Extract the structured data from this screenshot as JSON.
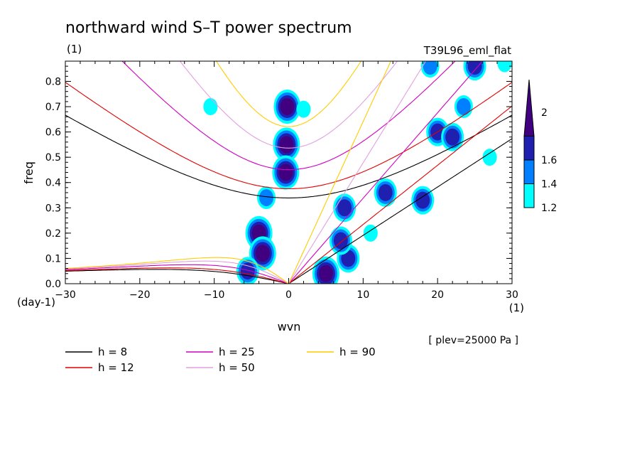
{
  "header": {
    "title": "northward wind S–T power spectrum",
    "subtitle_left": "(1)",
    "subtitle_right": "T39L96_eml_flat"
  },
  "chart_data": {
    "type": "heatmap",
    "title": "northward wind S–T power spectrum",
    "xlabel": "wvn",
    "ylabel": "freq",
    "x_unit": "(1)",
    "y_unit": "(day-1)",
    "xlim": [
      -30,
      30
    ],
    "ylim": [
      0,
      0.88
    ],
    "x_ticks": [
      -30,
      -20,
      -10,
      0,
      10,
      20,
      30
    ],
    "x_tick_labels": [
      "−30",
      "−20",
      "−10",
      "0",
      "10",
      "20",
      "30"
    ],
    "y_ticks": [
      0,
      0.1,
      0.2,
      0.3,
      0.4,
      0.5,
      0.6,
      0.7,
      0.8
    ],
    "y_tick_labels": [
      "0.0",
      "0.1",
      "0.2",
      "0.3",
      "0.4",
      "0.5",
      "0.6",
      "0.7",
      "0.8"
    ],
    "note": "[ plev=25000 Pa ]",
    "colorbar": {
      "levels": [
        1.2,
        1.4,
        1.6,
        2
      ],
      "labels": [
        "1.2",
        "1.4",
        "1.6",
        "2"
      ],
      "colors": [
        "#00ffff",
        "#0080ff",
        "#2020b0",
        "#400080"
      ]
    },
    "dispersion_curves": [
      {
        "label": "h =  8",
        "h": 8,
        "color": "#000000"
      },
      {
        "label": "h = 12",
        "h": 12,
        "color": "#e00000"
      },
      {
        "label": "h = 25",
        "h": 25,
        "color": "#d000c0"
      },
      {
        "label": "h = 50",
        "h": 50,
        "color": "#e0a0e0"
      },
      {
        "label": "h = 90",
        "h": 90,
        "color": "#ffcc00"
      }
    ],
    "power_blobs": [
      {
        "x": -0.2,
        "y": 0.7,
        "level": 4
      },
      {
        "x": -0.3,
        "y": 0.55,
        "level": 4
      },
      {
        "x": -0.4,
        "y": 0.44,
        "level": 4
      },
      {
        "x": -4.0,
        "y": 0.2,
        "level": 4
      },
      {
        "x": -3.5,
        "y": 0.12,
        "level": 4
      },
      {
        "x": -5.5,
        "y": 0.05,
        "level": 3
      },
      {
        "x": 5.0,
        "y": 0.04,
        "level": 4
      },
      {
        "x": 7.5,
        "y": 0.3,
        "level": 3
      },
      {
        "x": 8.0,
        "y": 0.1,
        "level": 3
      },
      {
        "x": 7.0,
        "y": 0.17,
        "level": 3
      },
      {
        "x": 13.0,
        "y": 0.36,
        "level": 3
      },
      {
        "x": 18.0,
        "y": 0.33,
        "level": 3
      },
      {
        "x": 20.0,
        "y": 0.6,
        "level": 3
      },
      {
        "x": 22.0,
        "y": 0.58,
        "level": 3
      },
      {
        "x": 23.5,
        "y": 0.7,
        "level": 2
      },
      {
        "x": 25.0,
        "y": 0.86,
        "level": 3
      },
      {
        "x": 19.0,
        "y": 0.86,
        "level": 2
      },
      {
        "x": -10.5,
        "y": 0.7,
        "level": 1
      },
      {
        "x": -3.0,
        "y": 0.34,
        "level": 2
      },
      {
        "x": 2.0,
        "y": 0.69,
        "level": 1
      },
      {
        "x": 11.0,
        "y": 0.2,
        "level": 1
      },
      {
        "x": 27.0,
        "y": 0.5,
        "level": 1
      },
      {
        "x": 29.0,
        "y": 0.87,
        "level": 1
      }
    ]
  },
  "legend": {
    "items": [
      {
        "label": "h =  8",
        "color": "#000000"
      },
      {
        "label": "h = 12",
        "color": "#e00000"
      },
      {
        "label": "h = 25",
        "color": "#d000c0"
      },
      {
        "label": "h = 50",
        "color": "#e0a0e0"
      },
      {
        "label": "h = 90",
        "color": "#ffcc00"
      }
    ]
  }
}
